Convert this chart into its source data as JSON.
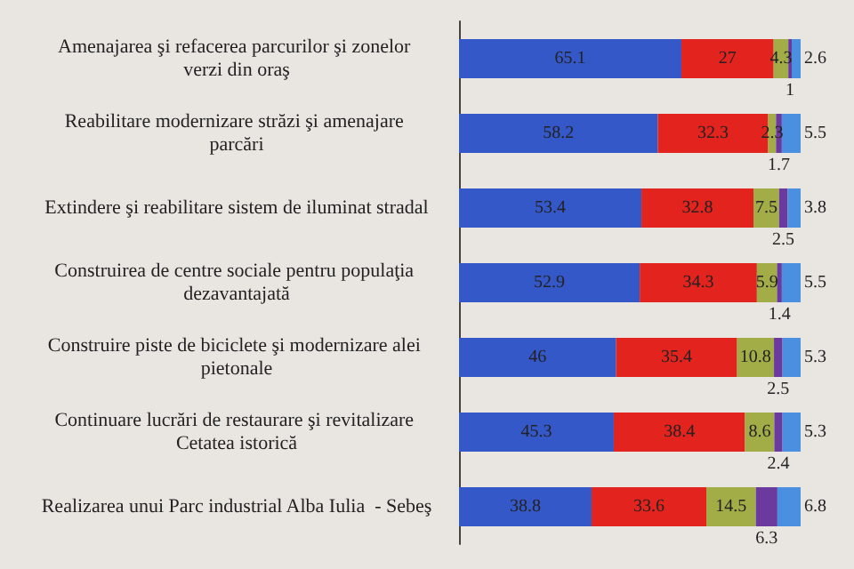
{
  "chart_data": {
    "type": "bar",
    "orientation": "horizontal",
    "stacked": true,
    "data_labels": true,
    "categories": [
      "Amenajarea şi refacerea parcurilor şi zonelor verzi din oraş",
      "Reabilitare modernizare străzi şi amenajare parcări",
      "Extindere şi reabilitare sistem de iluminat stradal",
      "Construirea de centre sociale pentru populaţia dezavantajată",
      "Construire piste de biciclete şi modernizare alei pietonale",
      "Continuare lucrări de restaurare şi revitalizare Cetatea istorică",
      "Realizarea unui Parc industrial Alba Iulia  - Sebeş"
    ],
    "series": [
      {
        "color": "#3558c8",
        "values": [
          65.1,
          58.2,
          53.4,
          52.9,
          46,
          45.3,
          38.8
        ]
      },
      {
        "color": "#e3231d",
        "values": [
          27,
          32.3,
          32.8,
          34.3,
          35.4,
          38.4,
          33.6
        ]
      },
      {
        "color": "#a3ad48",
        "values": [
          4.3,
          2.3,
          7.5,
          5.9,
          10.8,
          8.6,
          14.5
        ]
      },
      {
        "color": "#6b3a9e",
        "values": [
          1,
          1.7,
          2.5,
          1.4,
          2.5,
          2.4,
          6.3
        ]
      },
      {
        "color": "#4a8fe0",
        "values": [
          2.6,
          5.5,
          3.8,
          5.5,
          5.3,
          5.3,
          6.8
        ]
      }
    ]
  }
}
